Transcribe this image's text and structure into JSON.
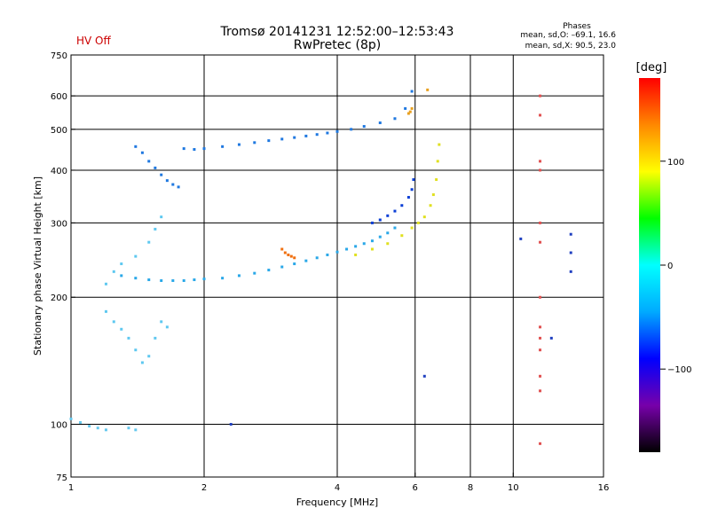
{
  "header": {
    "title": "Tromsø 20141231 12:52:00–12:53:43",
    "subtitle": "RwPretec (8p)",
    "status": "HV Off",
    "status_color": "#cc0000",
    "stats_title": "Phases",
    "stats_o": "mean, sd,O: –69.1, 16.6",
    "stats_x": "mean, sd,X:  90.5, 23.0"
  },
  "chart_data": {
    "type": "scatter",
    "xlabel": "Frequency [MHz]",
    "ylabel": "Stationary phase Virtual Height [km]",
    "x_scale": "log2",
    "y_scale": "log",
    "xlim": [
      1,
      16
    ],
    "ylim": [
      75,
      750
    ],
    "x_ticks": [
      1,
      2,
      4,
      6,
      8,
      10,
      16
    ],
    "y_ticks": [
      75,
      100,
      200,
      300,
      400,
      500,
      600,
      750
    ],
    "x_grid": [
      2,
      4,
      6,
      8,
      10
    ],
    "y_grid": [
      100,
      200,
      300,
      400,
      500,
      600
    ],
    "grid": true,
    "color_meaning": "phase",
    "colorbar": {
      "label": "[deg]",
      "range": [
        -180,
        180
      ],
      "ticks": [
        100,
        0,
        -100
      ],
      "colors": [
        "#000000",
        "#7700aa",
        "#0000ff",
        "#00aaff",
        "#00ffff",
        "#00ff00",
        "#ffff00",
        "#ff8800",
        "#ff0000"
      ]
    },
    "series": [
      {
        "color": "#1f78e0",
        "points": [
          [
            1.4,
            455
          ],
          [
            1.45,
            440
          ],
          [
            1.5,
            420
          ],
          [
            1.55,
            405
          ],
          [
            1.6,
            390
          ],
          [
            1.65,
            378
          ],
          [
            1.7,
            370
          ],
          [
            1.75,
            365
          ],
          [
            1.8,
            450
          ],
          [
            1.9,
            448
          ],
          [
            2.0,
            450
          ],
          [
            2.2,
            455
          ],
          [
            2.4,
            460
          ],
          [
            2.6,
            465
          ],
          [
            2.8,
            470
          ],
          [
            3.0,
            474
          ],
          [
            3.2,
            478
          ],
          [
            3.4,
            482
          ],
          [
            3.6,
            486
          ],
          [
            3.8,
            490
          ],
          [
            4.0,
            494
          ],
          [
            4.3,
            500
          ],
          [
            4.6,
            508
          ],
          [
            5.0,
            518
          ],
          [
            5.4,
            530
          ],
          [
            5.7,
            560
          ],
          [
            5.9,
            615
          ]
        ]
      },
      {
        "color": "#0b3fd6",
        "points": [
          [
            4.8,
            300
          ],
          [
            5.0,
            305
          ],
          [
            5.2,
            312
          ],
          [
            5.4,
            320
          ],
          [
            5.6,
            330
          ],
          [
            5.8,
            345
          ],
          [
            5.9,
            360
          ],
          [
            5.95,
            380
          ]
        ]
      },
      {
        "color": "#2aa8e8",
        "points": [
          [
            1.3,
            225
          ],
          [
            1.4,
            222
          ],
          [
            1.5,
            220
          ],
          [
            1.6,
            219
          ],
          [
            1.7,
            219
          ],
          [
            1.8,
            219
          ],
          [
            1.9,
            220
          ],
          [
            2.0,
            221
          ],
          [
            2.2,
            222
          ],
          [
            2.4,
            225
          ],
          [
            2.6,
            228
          ],
          [
            2.8,
            232
          ],
          [
            3.0,
            236
          ],
          [
            3.2,
            240
          ],
          [
            3.4,
            244
          ],
          [
            3.6,
            248
          ],
          [
            3.8,
            252
          ],
          [
            4.0,
            256
          ],
          [
            4.2,
            260
          ],
          [
            4.4,
            264
          ],
          [
            4.6,
            268
          ],
          [
            4.8,
            272
          ],
          [
            5.0,
            278
          ],
          [
            5.2,
            284
          ],
          [
            5.4,
            292
          ]
        ]
      },
      {
        "color": "#e0e020",
        "points": [
          [
            4.4,
            252
          ],
          [
            4.8,
            260
          ],
          [
            5.2,
            268
          ],
          [
            5.6,
            280
          ],
          [
            5.9,
            292
          ],
          [
            6.1,
            300
          ],
          [
            6.3,
            310
          ],
          [
            6.5,
            330
          ],
          [
            6.6,
            350
          ],
          [
            6.7,
            380
          ],
          [
            6.75,
            420
          ],
          [
            6.8,
            460
          ]
        ]
      },
      {
        "color": "#f07010",
        "points": [
          [
            3.0,
            260
          ],
          [
            3.05,
            255
          ],
          [
            3.1,
            252
          ],
          [
            3.15,
            250
          ],
          [
            3.2,
            248
          ]
        ]
      },
      {
        "color": "#e8a020",
        "points": [
          [
            5.8,
            545
          ],
          [
            5.85,
            550
          ],
          [
            5.9,
            560
          ],
          [
            6.4,
            620
          ]
        ]
      },
      {
        "color": "#5ec8f0",
        "points": [
          [
            1.2,
            185
          ],
          [
            1.25,
            175
          ],
          [
            1.3,
            168
          ],
          [
            1.35,
            160
          ],
          [
            1.4,
            150
          ],
          [
            1.45,
            140
          ],
          [
            1.5,
            145
          ],
          [
            1.55,
            160
          ],
          [
            1.6,
            175
          ],
          [
            1.65,
            170
          ],
          [
            1.2,
            215
          ],
          [
            1.25,
            230
          ],
          [
            1.3,
            240
          ],
          [
            1.4,
            250
          ],
          [
            1.5,
            270
          ],
          [
            1.55,
            290
          ],
          [
            1.6,
            310
          ]
        ]
      },
      {
        "color": "#66c8ee",
        "points": [
          [
            1.0,
            103
          ],
          [
            1.05,
            101
          ],
          [
            1.1,
            99
          ],
          [
            1.15,
            98
          ],
          [
            1.2,
            97
          ],
          [
            1.35,
            98
          ],
          [
            1.4,
            97
          ]
        ]
      },
      {
        "color": "#e05050",
        "points": [
          [
            11.5,
            600
          ],
          [
            11.5,
            540
          ],
          [
            11.5,
            420
          ],
          [
            11.5,
            400
          ],
          [
            11.5,
            300
          ],
          [
            11.5,
            270
          ],
          [
            11.5,
            200
          ],
          [
            11.5,
            170
          ],
          [
            11.5,
            160
          ],
          [
            11.5,
            150
          ],
          [
            11.5,
            130
          ],
          [
            11.5,
            120
          ],
          [
            11.5,
            90
          ]
        ]
      },
      {
        "color": "#2040c0",
        "points": [
          [
            10.4,
            275
          ],
          [
            12.2,
            160
          ],
          [
            13.5,
            282
          ],
          [
            13.5,
            255
          ],
          [
            13.5,
            230
          ],
          [
            6.3,
            130
          ],
          [
            2.3,
            100
          ]
        ]
      }
    ]
  }
}
